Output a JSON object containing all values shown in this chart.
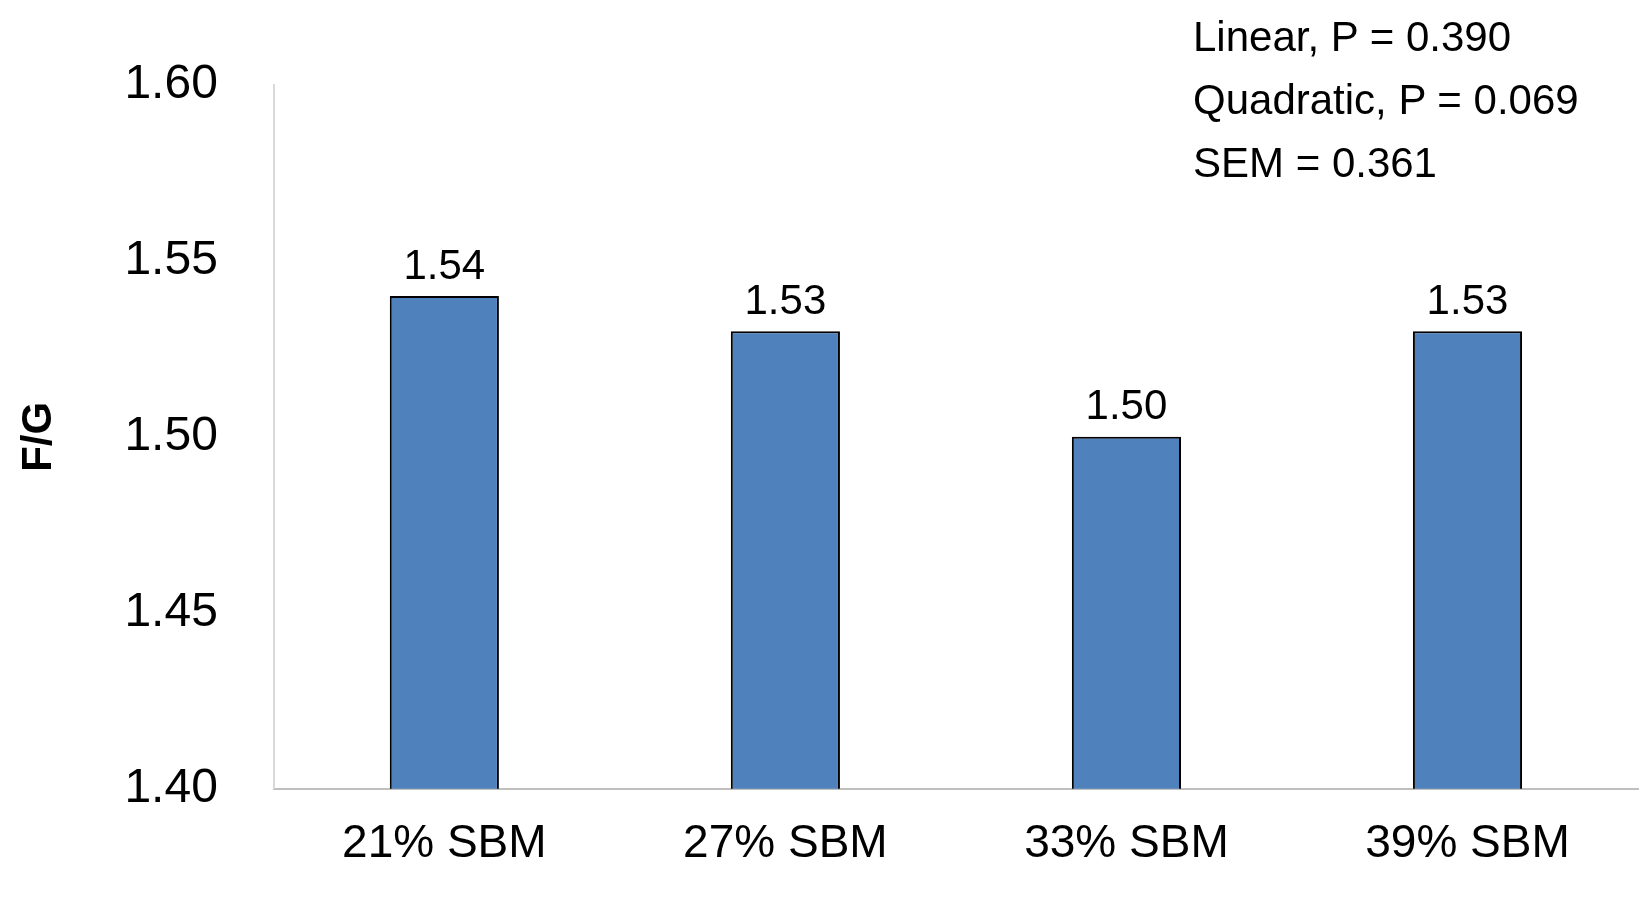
{
  "chart_data": {
    "type": "bar",
    "ylabel": "F/G",
    "categories": [
      "21% SBM",
      "27% SBM",
      "33% SBM",
      "39% SBM"
    ],
    "values": [
      1.54,
      1.53,
      1.5,
      1.53
    ],
    "color": "#4f81bd",
    "ylim": [
      1.4,
      1.6
    ],
    "yticks": [
      {
        "value": 1.4,
        "label": "1.40"
      },
      {
        "value": 1.45,
        "label": "1.45"
      },
      {
        "value": 1.5,
        "label": "1.50"
      },
      {
        "value": 1.55,
        "label": "1.55"
      },
      {
        "value": 1.6,
        "label": "1.60"
      }
    ],
    "grid": false,
    "legend": false,
    "value_labels": [
      "1.54",
      "1.53",
      "1.50",
      "1.53"
    ],
    "annotations": [
      "Linear, P = 0.390",
      "Quadratic, P = 0.069",
      "SEM = 0.361"
    ]
  }
}
